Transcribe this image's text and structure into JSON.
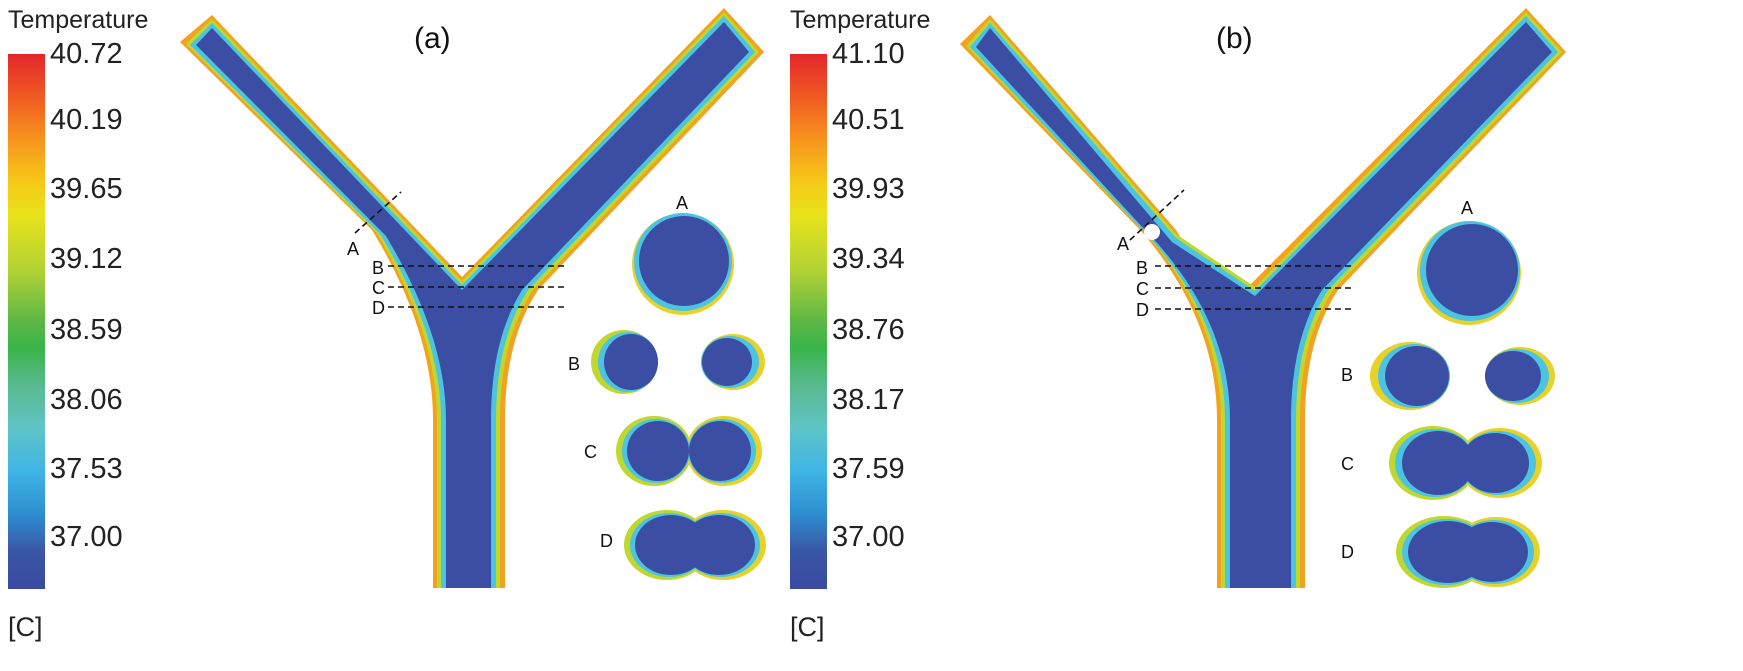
{
  "panels": [
    {
      "id": "a",
      "label": "(a)",
      "legend": {
        "title": "Temperature",
        "unit": "[C]",
        "ticks": [
          "40.72",
          "40.19",
          "39.65",
          "39.12",
          "38.59",
          "38.06",
          "37.53",
          "37.00"
        ]
      },
      "cut_labels": [
        "A",
        "B",
        "C",
        "D"
      ],
      "section_labels": [
        "A",
        "B",
        "C",
        "D"
      ]
    },
    {
      "id": "b",
      "label": "(b)",
      "legend": {
        "title": "Temperature",
        "unit": "[C]",
        "ticks": [
          "41.10",
          "40.51",
          "39.93",
          "39.34",
          "38.76",
          "38.17",
          "37.59",
          "37.00"
        ]
      },
      "cut_labels": [
        "A",
        "B",
        "C",
        "D"
      ],
      "section_labels": [
        "A",
        "B",
        "C",
        "D"
      ]
    }
  ],
  "colors": {
    "core": "#3b4ea3",
    "wall_hot": "#f2a21e",
    "wall_warm": "#bfd72f",
    "wall_cool": "#4cc3e0"
  }
}
